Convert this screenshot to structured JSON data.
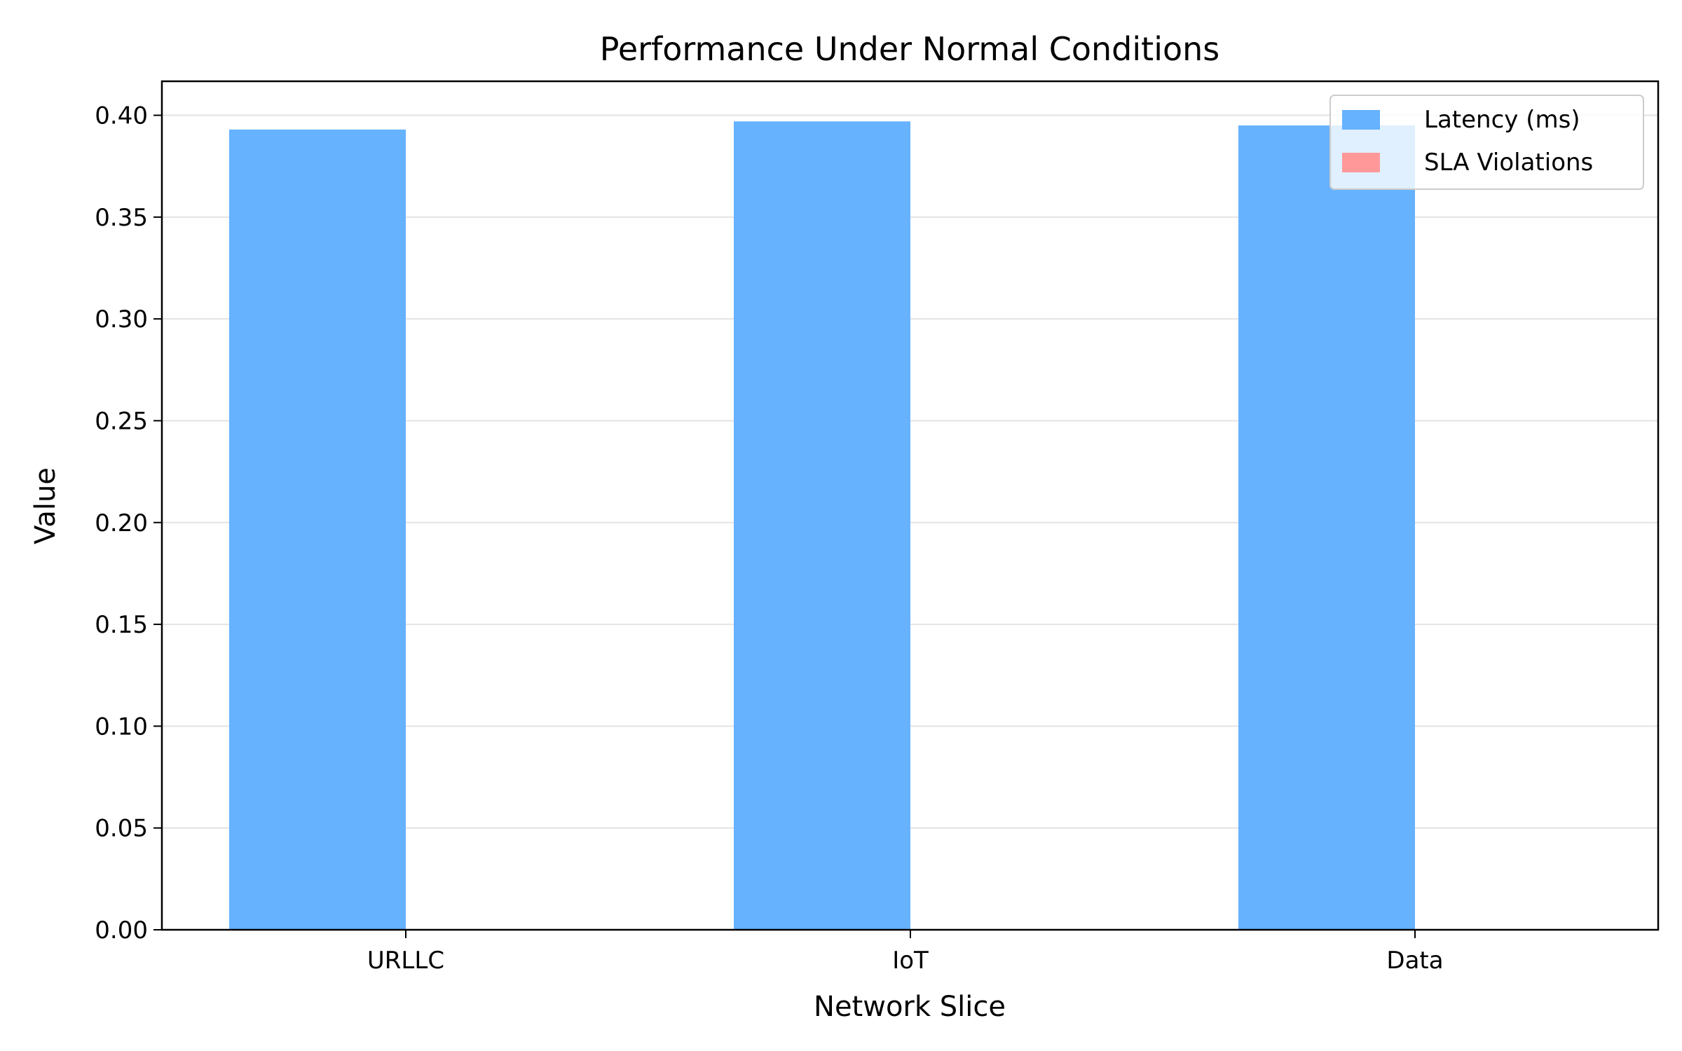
{
  "chart_data": {
    "type": "bar",
    "title": "Performance Under Normal Conditions",
    "xlabel": "Network Slice",
    "ylabel": "Value",
    "categories": [
      "URLLC",
      "IoT",
      "Data"
    ],
    "series": [
      {
        "name": "Latency (ms)",
        "values": [
          0.393,
          0.397,
          0.395
        ],
        "color": "#66b2ff"
      },
      {
        "name": "SLA Violations",
        "values": [
          0,
          0,
          0
        ],
        "color": "#ff9999"
      }
    ],
    "ylim": [
      0,
      0.4167
    ],
    "yticks": [
      "0.00",
      "0.05",
      "0.10",
      "0.15",
      "0.20",
      "0.25",
      "0.30",
      "0.35",
      "0.40"
    ],
    "grid": "y",
    "legend_position": "top-right"
  }
}
